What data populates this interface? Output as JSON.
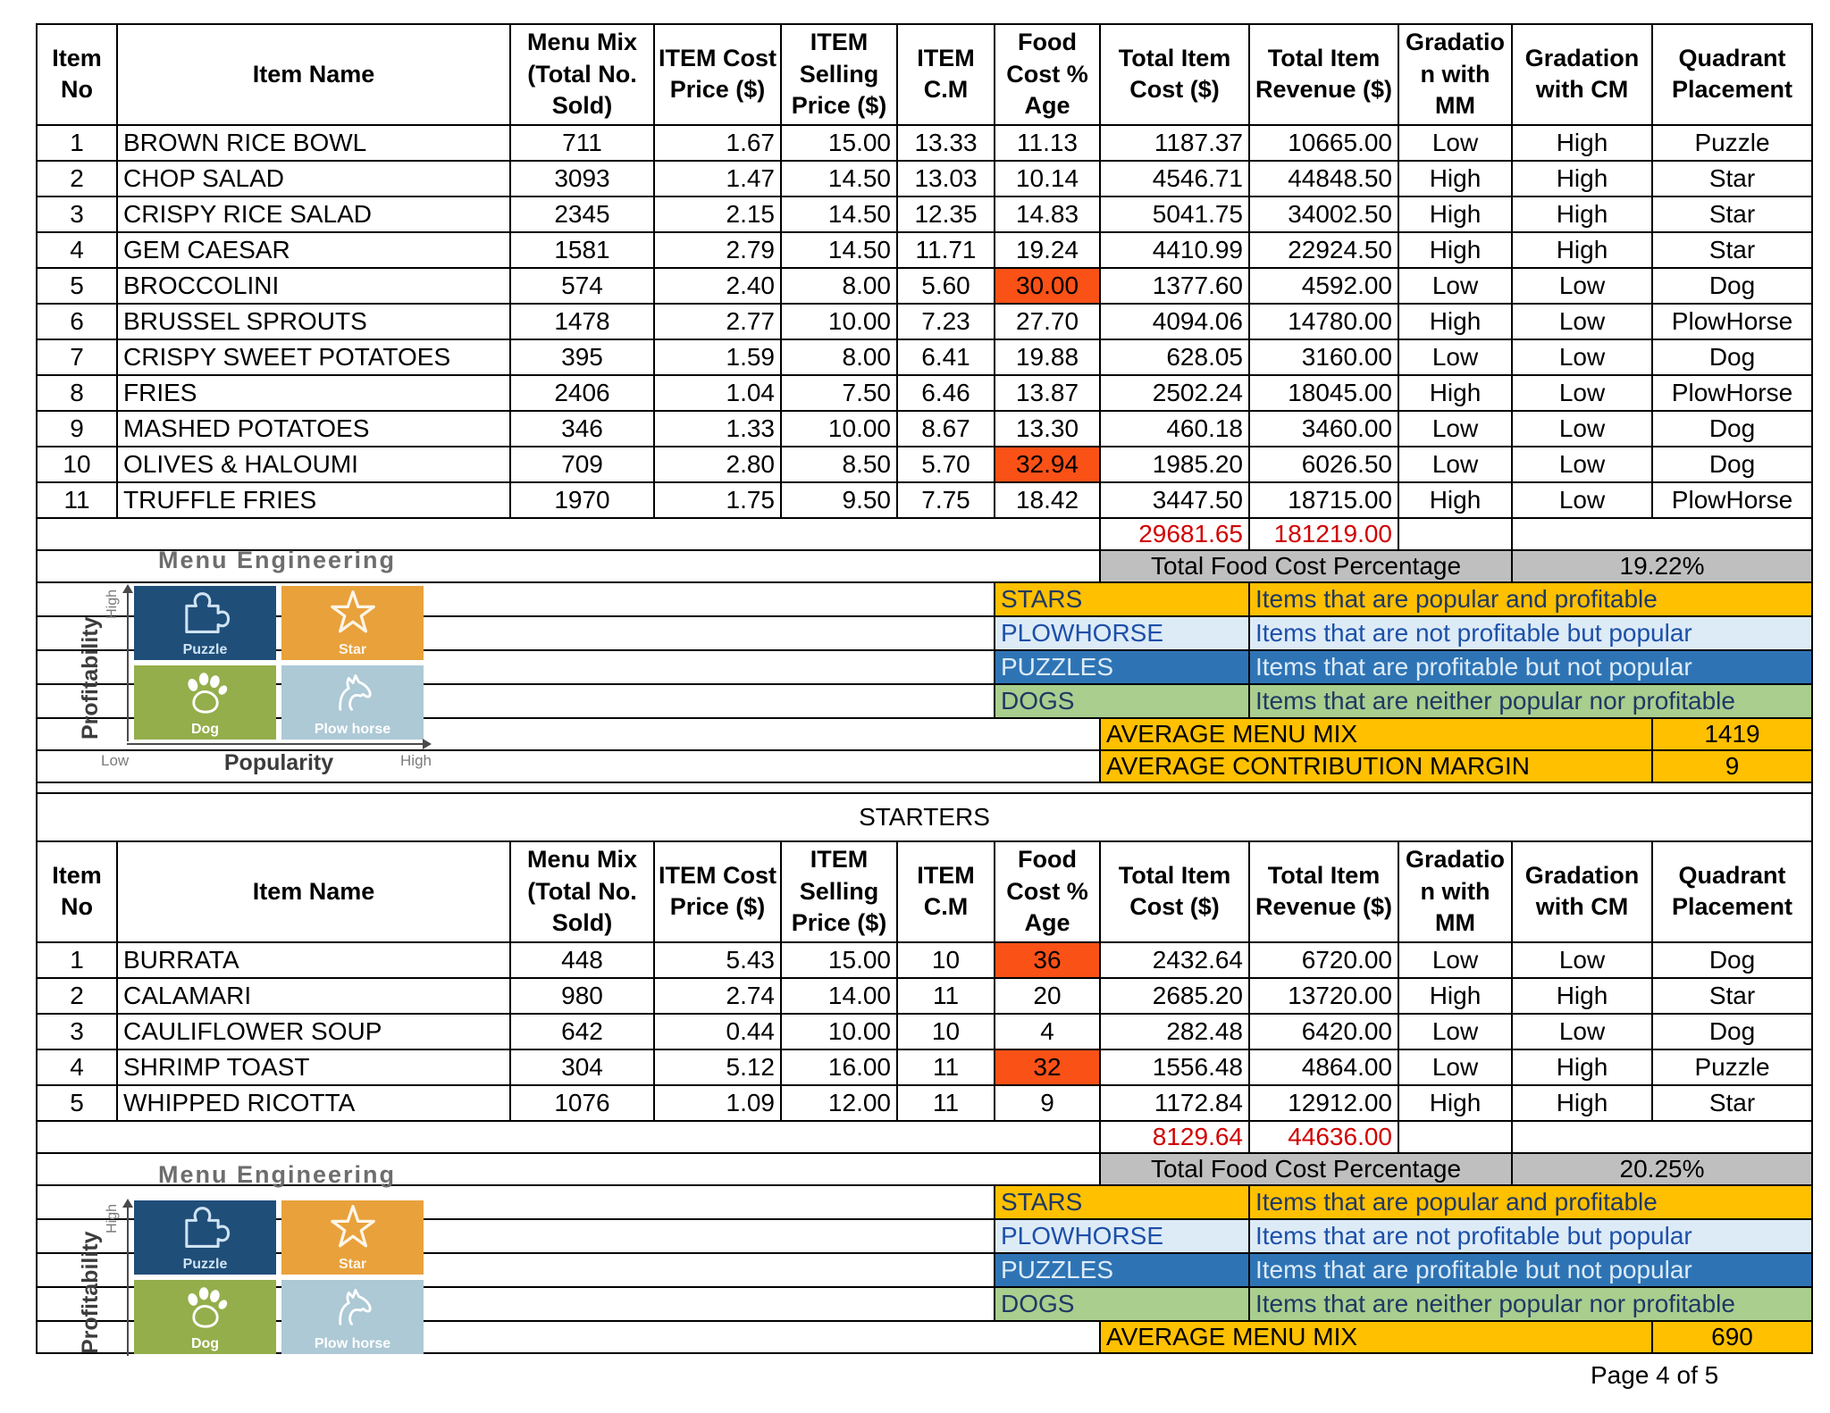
{
  "footer": {
    "label": "Page 4 of 5"
  },
  "colors": {
    "highlight_orange": "#FA5117",
    "totals_red": "#D10000",
    "summary_gray": "#BFBFBF",
    "gold": "#FFC000"
  },
  "table": {
    "columns": [
      "Item No",
      "Item Name",
      "Menu Mix (Total No. Sold)",
      "ITEM Cost Price ($)",
      "ITEM Selling Price ($)",
      "ITEM C.M",
      "Food Cost % Age",
      "Total Item Cost ($)",
      "Total Item Revenue ($)",
      "Gradation with MM",
      "Gradation with CM",
      "Quadrant Placement"
    ],
    "sections": [
      {
        "title": "",
        "rows": [
          [
            "1",
            "BROWN RICE BOWL",
            "711",
            "1.67",
            "15.00",
            "13.33",
            "11.13",
            "1187.37",
            "10665.00",
            "Low",
            "High",
            "Puzzle"
          ],
          [
            "2",
            "CHOP SALAD",
            "3093",
            "1.47",
            "14.50",
            "13.03",
            "10.14",
            "4546.71",
            "44848.50",
            "High",
            "High",
            "Star"
          ],
          [
            "3",
            "CRISPY RICE SALAD",
            "2345",
            "2.15",
            "14.50",
            "12.35",
            "14.83",
            "5041.75",
            "34002.50",
            "High",
            "High",
            "Star"
          ],
          [
            "4",
            "GEM CAESAR",
            "1581",
            "2.79",
            "14.50",
            "11.71",
            "19.24",
            "4410.99",
            "22924.50",
            "High",
            "High",
            "Star"
          ],
          [
            "5",
            "BROCCOLINI",
            "574",
            "2.40",
            "8.00",
            "5.60",
            "30.00",
            "1377.60",
            "4592.00",
            "Low",
            "Low",
            "Dog"
          ],
          [
            "6",
            "BRUSSEL SPROUTS",
            "1478",
            "2.77",
            "10.00",
            "7.23",
            "27.70",
            "4094.06",
            "14780.00",
            "High",
            "Low",
            "PlowHorse"
          ],
          [
            "7",
            "CRISPY SWEET POTATOES",
            "395",
            "1.59",
            "8.00",
            "6.41",
            "19.88",
            "628.05",
            "3160.00",
            "Low",
            "Low",
            "Dog"
          ],
          [
            "8",
            "FRIES",
            "2406",
            "1.04",
            "7.50",
            "6.46",
            "13.87",
            "2502.24",
            "18045.00",
            "High",
            "Low",
            "PlowHorse"
          ],
          [
            "9",
            "MASHED POTATOES",
            "346",
            "1.33",
            "10.00",
            "8.67",
            "13.30",
            "460.18",
            "3460.00",
            "Low",
            "Low",
            "Dog"
          ],
          [
            "10",
            "OLIVES & HALOUMI",
            "709",
            "2.80",
            "8.50",
            "5.70",
            "32.94",
            "1985.20",
            "6026.50",
            "Low",
            "Low",
            "Dog"
          ],
          [
            "11",
            "TRUFFLE FRIES",
            "1970",
            "1.75",
            "9.50",
            "7.75",
            "18.42",
            "3447.50",
            "18715.00",
            "High",
            "Low",
            "PlowHorse"
          ]
        ],
        "food_cost_highlight_rows": [
          4,
          9
        ],
        "totals": {
          "total_item_cost": "29681.65",
          "total_item_revenue": "181219.00"
        },
        "food_cost_percentage_label": "Total Food Cost Percentage",
        "food_cost_percentage": "19.22%",
        "averages": [
          {
            "label": "AVERAGE MENU MIX",
            "value": "1419"
          },
          {
            "label": "AVERAGE CONTRIBUTION MARGIN",
            "value": "9"
          }
        ]
      },
      {
        "title": "STARTERS",
        "rows": [
          [
            "1",
            "BURRATA",
            "448",
            "5.43",
            "15.00",
            "10",
            "36",
            "2432.64",
            "6720.00",
            "Low",
            "Low",
            "Dog"
          ],
          [
            "2",
            "CALAMARI",
            "980",
            "2.74",
            "14.00",
            "11",
            "20",
            "2685.20",
            "13720.00",
            "High",
            "High",
            "Star"
          ],
          [
            "3",
            "CAULIFLOWER SOUP",
            "642",
            "0.44",
            "10.00",
            "10",
            "4",
            "282.48",
            "6420.00",
            "Low",
            "Low",
            "Dog"
          ],
          [
            "4",
            "SHRIMP TOAST",
            "304",
            "5.12",
            "16.00",
            "11",
            "32",
            "1556.48",
            "4864.00",
            "Low",
            "High",
            "Puzzle"
          ],
          [
            "5",
            "WHIPPED RICOTTA",
            "1076",
            "1.09",
            "12.00",
            "11",
            "9",
            "1172.84",
            "12912.00",
            "High",
            "High",
            "Star"
          ]
        ],
        "food_cost_highlight_rows": [
          0,
          3
        ],
        "totals": {
          "total_item_cost": "8129.64",
          "total_item_revenue": "44636.00"
        },
        "food_cost_percentage_label": "Total Food Cost Percentage",
        "food_cost_percentage": "20.25%",
        "averages": [
          {
            "label": "AVERAGE MENU MIX",
            "value": "690"
          }
        ]
      }
    ],
    "legend": [
      {
        "label": "STARS",
        "desc": "Items that are popular and profitable",
        "bg": "#FFC000",
        "fg": "#1F3864"
      },
      {
        "label": "PLOWHORSE",
        "desc": "Items that are not profitable but popular",
        "bg": "#DDEBF7",
        "fg": "#1D50A8"
      },
      {
        "label": "PUZZLES",
        "desc": "Items that are profitable but not popular",
        "bg": "#2E74B5",
        "fg": "#DDEBF7"
      },
      {
        "label": "DOGS",
        "desc": "Items that are neither popular nor profitable",
        "bg": "#A9CE8E",
        "fg": "#1F3864"
      }
    ]
  },
  "diagram": {
    "title": "Menu Engineering",
    "y_axis_label": "Profitability",
    "x_axis_label": "Popularity",
    "y_high_label": "High",
    "x_low_label": "Low",
    "x_high_label": "High",
    "quadrants": [
      {
        "label": "Puzzle",
        "icon": "puzzle-icon",
        "bg": "#1F4E79",
        "fg": "#CFE3F2"
      },
      {
        "label": "Star",
        "icon": "star-icon",
        "bg": "#E9A13C",
        "fg": "#FDF6E8"
      },
      {
        "label": "Dog",
        "icon": "paw-icon",
        "bg": "#94AE4B",
        "fg": "#FFFFFF"
      },
      {
        "label": "Plow horse",
        "icon": "horse-icon",
        "bg": "#ACC9D5",
        "fg": "#FFFFFF"
      }
    ]
  }
}
